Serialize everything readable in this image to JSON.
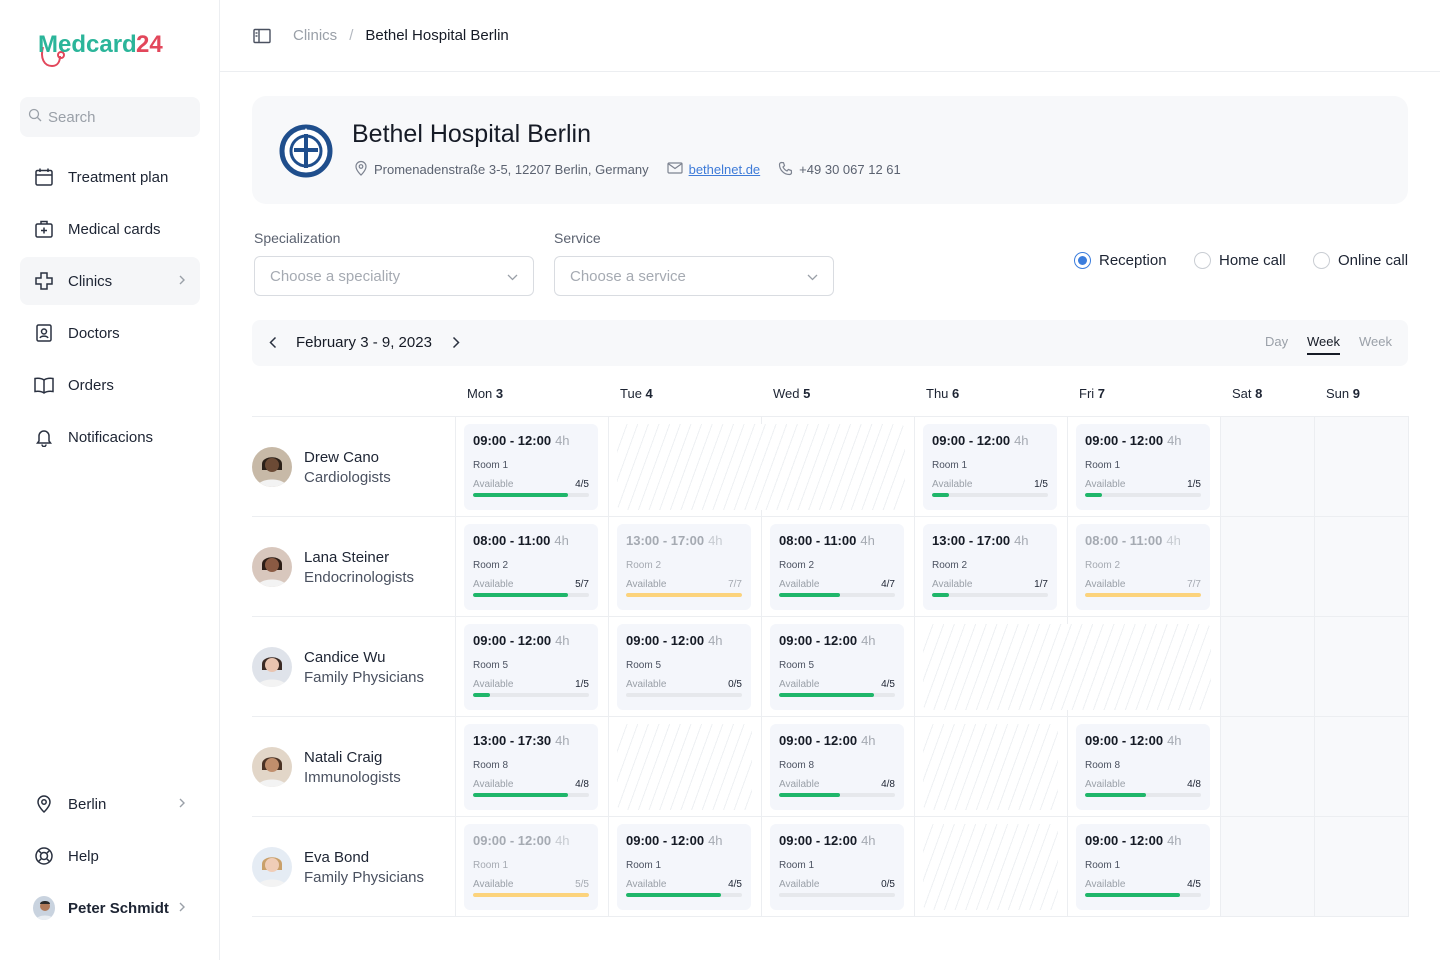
{
  "brand": {
    "name_part1": "Medcard",
    "name_part2": "24",
    "color1": "#2bb59a",
    "color2": "#e2475b"
  },
  "sidebar": {
    "search_placeholder": "Search",
    "items": [
      {
        "label": "Treatment plan",
        "icon": "calendar-icon"
      },
      {
        "label": "Medical cards",
        "icon": "medical-case-icon"
      },
      {
        "label": "Clinics",
        "icon": "cross-icon"
      },
      {
        "label": "Doctors",
        "icon": "id-badge-icon"
      },
      {
        "label": "Orders",
        "icon": "book-icon"
      },
      {
        "label": "Notificacions",
        "icon": "bell-icon"
      }
    ],
    "bottom": [
      {
        "label": "Berlin",
        "icon": "location-icon"
      },
      {
        "label": "Help",
        "icon": "lifebuoy-icon"
      },
      {
        "label": "Peter Schmidt",
        "icon": "user-avatar"
      }
    ]
  },
  "header": {
    "breadcrumb_parent": "Clinics",
    "breadcrumb_sep": "/",
    "breadcrumb_current": "Bethel Hospital Berlin"
  },
  "clinic": {
    "name": "Bethel Hospital Berlin",
    "address": "Promenadenstraße 3-5, 12207 Berlin, Germany",
    "website": "bethelnet.de",
    "phone": "+49 30 067 12 61"
  },
  "filters": {
    "specialization_label": "Specialization",
    "specialization_placeholder": "Choose a speciality",
    "service_label": "Service",
    "service_placeholder": "Choose a service",
    "visit_types": [
      "Reception",
      "Home call",
      "Online call"
    ],
    "selected_visit_type": "Reception"
  },
  "calendar": {
    "range": "February 3 - 9, 2023",
    "views": [
      "Day",
      "Week",
      "Week"
    ],
    "active_view": 1,
    "days": [
      {
        "name": "Mon",
        "num": "3"
      },
      {
        "name": "Tue",
        "num": "4"
      },
      {
        "name": "Wed",
        "num": "5"
      },
      {
        "name": "Thu",
        "num": "6"
      },
      {
        "name": "Fri",
        "num": "7"
      },
      {
        "name": "Sat",
        "num": "8"
      },
      {
        "name": "Sun",
        "num": "9"
      }
    ],
    "colors": {
      "green": "#1fb66a",
      "yellow": "#fcd37c"
    },
    "doctors": [
      {
        "name": "Drew Cano",
        "specialty": "Cardiologists",
        "slots": [
          {
            "day": 0,
            "time": "09:00 - 12:00",
            "dur": "4h",
            "room": "Room 1",
            "avail_label": "Available",
            "avail": "4/5",
            "fill": 0.82,
            "color": "green"
          },
          {
            "day": 1,
            "hatched": true,
            "span": 2
          },
          {
            "day": 3,
            "time": "09:00 - 12:00",
            "dur": "4h",
            "room": "Room 1",
            "avail_label": "Available",
            "avail": "1/5",
            "fill": 0.15,
            "color": "green"
          },
          {
            "day": 4,
            "time": "09:00 - 12:00",
            "dur": "4h",
            "room": "Room 1",
            "avail_label": "Available",
            "avail": "1/5",
            "fill": 0.15,
            "color": "green"
          }
        ]
      },
      {
        "name": "Lana Steiner",
        "specialty": "Endocrinologists",
        "slots": [
          {
            "day": 0,
            "time": "08:00 - 11:00",
            "dur": "4h",
            "room": "Room 2",
            "avail_label": "Available",
            "avail": "5/7",
            "fill": 0.82,
            "color": "green"
          },
          {
            "day": 1,
            "time": "13:00 - 17:00",
            "dur": "4h",
            "room": "Room 2",
            "avail_label": "Available",
            "avail": "7/7",
            "fill": 1.0,
            "color": "yellow",
            "dim": true
          },
          {
            "day": 2,
            "time": "08:00 - 11:00",
            "dur": "4h",
            "room": "Room 2",
            "avail_label": "Available",
            "avail": "4/7",
            "fill": 0.53,
            "color": "green"
          },
          {
            "day": 3,
            "time": "13:00 - 17:00",
            "dur": "4h",
            "room": "Room 2",
            "avail_label": "Available",
            "avail": "1/7",
            "fill": 0.15,
            "color": "green"
          },
          {
            "day": 4,
            "time": "08:00 - 11:00",
            "dur": "4h",
            "room": "Room 2",
            "avail_label": "Available",
            "avail": "7/7",
            "fill": 1.0,
            "color": "yellow",
            "dim": true
          }
        ]
      },
      {
        "name": "Candice Wu",
        "specialty": "Family Physicians",
        "slots": [
          {
            "day": 0,
            "time": "09:00 - 12:00",
            "dur": "4h",
            "room": "Room 5",
            "avail_label": "Available",
            "avail": "1/5",
            "fill": 0.15,
            "color": "green"
          },
          {
            "day": 1,
            "time": "09:00 - 12:00",
            "dur": "4h",
            "room": "Room 5",
            "avail_label": "Available",
            "avail": "0/5",
            "fill": 0.0,
            "color": "green"
          },
          {
            "day": 2,
            "time": "09:00 - 12:00",
            "dur": "4h",
            "room": "Room 5",
            "avail_label": "Available",
            "avail": "4/5",
            "fill": 0.82,
            "color": "green"
          },
          {
            "day": 3,
            "hatched": true,
            "span": 2
          }
        ]
      },
      {
        "name": "Natali Craig",
        "specialty": "Immunologists",
        "slots": [
          {
            "day": 0,
            "time": "13:00 - 17:30",
            "dur": "4h",
            "room": "Room 8",
            "avail_label": "Available",
            "avail": "4/8",
            "fill": 0.82,
            "color": "green"
          },
          {
            "day": 1,
            "hatched": true,
            "span": 1
          },
          {
            "day": 2,
            "time": "09:00 - 12:00",
            "dur": "4h",
            "room": "Room 8",
            "avail_label": "Available",
            "avail": "4/8",
            "fill": 0.53,
            "color": "green"
          },
          {
            "day": 3,
            "hatched": true,
            "span": 1
          },
          {
            "day": 4,
            "time": "09:00 - 12:00",
            "dur": "4h",
            "room": "Room 8",
            "avail_label": "Available",
            "avail": "4/8",
            "fill": 0.53,
            "color": "green"
          }
        ]
      },
      {
        "name": "Eva Bond",
        "specialty": "Family Physicians",
        "slots": [
          {
            "day": 0,
            "time": "09:00 - 12:00",
            "dur": "4h",
            "room": "Room 1",
            "avail_label": "Available",
            "avail": "5/5",
            "fill": 1.0,
            "color": "yellow",
            "dim": true
          },
          {
            "day": 1,
            "time": "09:00 - 12:00",
            "dur": "4h",
            "room": "Room 1",
            "avail_label": "Available",
            "avail": "4/5",
            "fill": 0.82,
            "color": "green"
          },
          {
            "day": 2,
            "time": "09:00 - 12:00",
            "dur": "4h",
            "room": "Room 1",
            "avail_label": "Available",
            "avail": "0/5",
            "fill": 0.0,
            "color": "green"
          },
          {
            "day": 3,
            "hatched": true,
            "span": 1
          },
          {
            "day": 4,
            "time": "09:00 - 12:00",
            "dur": "4h",
            "room": "Room 1",
            "avail_label": "Available",
            "avail": "4/5",
            "fill": 0.82,
            "color": "green"
          }
        ]
      }
    ]
  }
}
